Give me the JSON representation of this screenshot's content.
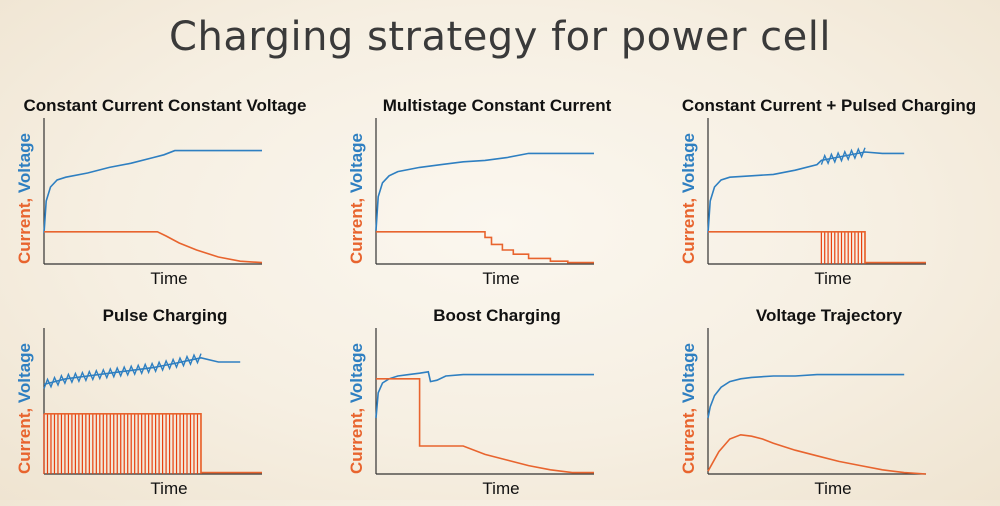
{
  "title": "Charging strategy for power cell",
  "colors": {
    "voltage": "#2e7fc1",
    "current": "#e8642e",
    "pulse": "#e8400f",
    "axis": "#333333"
  },
  "chart_data": [
    {
      "type": "line",
      "title": "Constant Current Constant Voltage",
      "xlabel": "Time",
      "ylabel_current": "Current,",
      "ylabel_voltage": "Voltage",
      "xlim": [
        0,
        100
      ],
      "ylim": [
        0,
        100
      ],
      "series": [
        {
          "kind": "voltage",
          "x": [
            0,
            1,
            3,
            6,
            10,
            20,
            30,
            40,
            50,
            55,
            60,
            70,
            80,
            90,
            100
          ],
          "y": [
            22,
            45,
            55,
            60,
            62,
            65,
            69,
            72,
            76,
            78,
            81,
            81,
            81,
            81,
            81
          ]
        },
        {
          "kind": "current",
          "x": [
            0,
            10,
            20,
            30,
            40,
            52,
            56,
            62,
            70,
            80,
            90,
            100
          ],
          "y": [
            23,
            23,
            23,
            23,
            23,
            23,
            20,
            15,
            10,
            5,
            2,
            1
          ]
        }
      ]
    },
    {
      "type": "line",
      "title": "Multistage Constant Current",
      "xlabel": "Time",
      "ylabel_current": "Current,",
      "ylabel_voltage": "Voltage",
      "xlim": [
        0,
        100
      ],
      "ylim": [
        0,
        100
      ],
      "series": [
        {
          "kind": "voltage",
          "x": [
            0,
            1,
            3,
            6,
            10,
            20,
            30,
            40,
            50,
            60,
            70,
            80,
            90,
            100
          ],
          "y": [
            24,
            48,
            58,
            63,
            66,
            69,
            71,
            73,
            74,
            76,
            79,
            79,
            79,
            79
          ]
        },
        {
          "kind": "current",
          "x": [
            0,
            50,
            50,
            53,
            53,
            58,
            58,
            63,
            63,
            70,
            70,
            80,
            80,
            88,
            88,
            100
          ],
          "y": [
            23,
            23,
            19,
            19,
            14,
            14,
            10,
            10,
            7,
            7,
            4,
            4,
            2,
            2,
            1,
            1
          ]
        }
      ]
    },
    {
      "type": "line",
      "title": "Constant Current + Pulsed Charging",
      "xlabel": "Time",
      "ylabel_current": "Current,",
      "ylabel_voltage": "Voltage",
      "xlim": [
        0,
        100
      ],
      "ylim": [
        0,
        100
      ],
      "pulse_region": [
        52,
        72
      ],
      "series": [
        {
          "kind": "voltage",
          "x": [
            0,
            1,
            3,
            6,
            10,
            20,
            30,
            40,
            50,
            52,
            72,
            80,
            90
          ],
          "y": [
            22,
            45,
            55,
            60,
            62,
            63,
            64,
            67,
            71,
            74,
            80,
            79,
            79
          ]
        },
        {
          "kind": "current",
          "x": [
            0,
            52,
            52,
            72,
            72,
            100
          ],
          "y": [
            23,
            23,
            23,
            23,
            1,
            1
          ]
        }
      ]
    },
    {
      "type": "line",
      "title": "Pulse Charging",
      "xlabel": "Time",
      "ylabel_current": "Current,",
      "ylabel_voltage": "Voltage",
      "xlim": [
        0,
        100
      ],
      "ylim": [
        0,
        100
      ],
      "pulse_region": [
        0,
        72
      ],
      "series": [
        {
          "kind": "voltage",
          "x": [
            0,
            10,
            20,
            30,
            40,
            50,
            60,
            72,
            80,
            90
          ],
          "y": [
            64,
            68,
            70,
            72,
            74,
            76,
            79,
            83,
            80,
            80
          ]
        },
        {
          "kind": "current",
          "x": [
            0,
            72,
            72,
            100
          ],
          "y": [
            43,
            43,
            1,
            1
          ]
        }
      ]
    },
    {
      "type": "line",
      "title": "Boost Charging",
      "xlabel": "Time",
      "ylabel_current": "Current,",
      "ylabel_voltage": "Voltage",
      "xlim": [
        0,
        100
      ],
      "ylim": [
        0,
        100
      ],
      "series": [
        {
          "kind": "voltage",
          "x": [
            0,
            1,
            3,
            6,
            10,
            15,
            20,
            24,
            25,
            28,
            32,
            40,
            60,
            80,
            100
          ],
          "y": [
            40,
            58,
            65,
            68,
            70,
            71,
            72,
            73,
            66,
            67,
            70,
            71,
            71,
            71,
            71
          ]
        },
        {
          "kind": "current",
          "x": [
            0,
            20,
            20,
            30,
            40,
            50,
            60,
            70,
            80,
            90,
            100
          ],
          "y": [
            68,
            68,
            20,
            20,
            20,
            14,
            10,
            6,
            3,
            1,
            1
          ]
        }
      ]
    },
    {
      "type": "line",
      "title": "Voltage Trajectory",
      "xlabel": "Time",
      "ylabel_current": "Current,",
      "ylabel_voltage": "Voltage",
      "xlim": [
        0,
        100
      ],
      "ylim": [
        0,
        100
      ],
      "series": [
        {
          "kind": "voltage",
          "x": [
            0,
            1,
            3,
            6,
            10,
            15,
            20,
            30,
            40,
            50,
            60,
            70,
            80,
            90
          ],
          "y": [
            40,
            48,
            56,
            62,
            66,
            68,
            69,
            70,
            70,
            71,
            71,
            71,
            71,
            71
          ]
        },
        {
          "kind": "current",
          "x": [
            0,
            5,
            10,
            15,
            20,
            25,
            30,
            40,
            50,
            60,
            70,
            80,
            90,
            100
          ],
          "y": [
            2,
            16,
            25,
            28,
            27,
            25,
            22,
            17,
            13,
            9,
            6,
            3,
            1,
            0
          ]
        }
      ]
    }
  ]
}
